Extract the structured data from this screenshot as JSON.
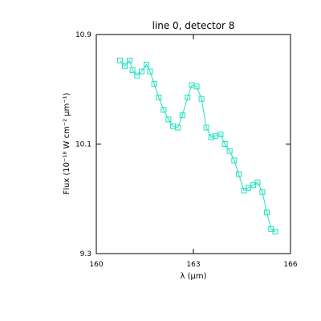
{
  "chart_data": {
    "type": "line",
    "title": "line 0, detector 8",
    "xlabel": "λ (μm)",
    "ylabel": "Flux (10⁻¹⁸ W cm⁻² μm⁻¹)",
    "xlim": [
      160,
      166
    ],
    "ylim": [
      9.3,
      10.9
    ],
    "xticks": [
      "160",
      "163",
      "166"
    ],
    "yticks": [
      "9.3",
      "10.1",
      "10.9"
    ],
    "grid": false,
    "series": [
      {
        "color": "#20e0c0",
        "marker": "square",
        "x": [
          160.73,
          160.88,
          161.03,
          161.12,
          161.26,
          161.4,
          161.55,
          161.66,
          161.79,
          161.93,
          162.08,
          162.23,
          162.37,
          162.52,
          162.66,
          162.82,
          162.95,
          163.1,
          163.25,
          163.4,
          163.55,
          163.68,
          163.84,
          163.97,
          164.12,
          164.26,
          164.4,
          164.56,
          164.7,
          164.85,
          164.98,
          165.13,
          165.27,
          165.4,
          165.53
        ],
        "y": [
          10.71,
          10.67,
          10.71,
          10.64,
          10.6,
          10.63,
          10.68,
          10.63,
          10.54,
          10.44,
          10.35,
          10.28,
          10.23,
          10.22,
          10.31,
          10.44,
          10.53,
          10.52,
          10.43,
          10.22,
          10.15,
          10.16,
          10.17,
          10.1,
          10.05,
          9.98,
          9.88,
          9.76,
          9.78,
          9.8,
          9.82,
          9.75,
          9.6,
          9.48,
          9.46
        ]
      }
    ]
  }
}
